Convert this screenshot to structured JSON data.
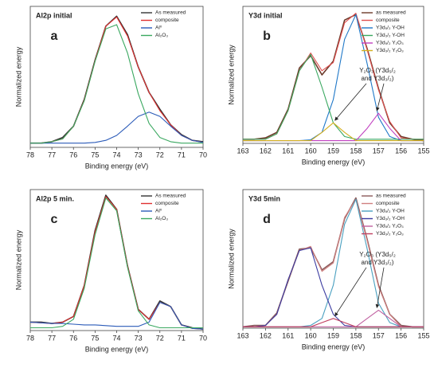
{
  "chart_data": [
    {
      "type": "line",
      "title": "Al2p initial",
      "label": "a",
      "x_label": "Binding energy (eV)",
      "y_label": "Normalized energy",
      "xlim": [
        78,
        70
      ],
      "xticks": [
        78,
        77,
        76,
        75,
        74,
        73,
        72,
        71,
        70
      ],
      "ylim": [
        0,
        1
      ],
      "legend": "upper right",
      "x": [
        78,
        77.5,
        77,
        76.5,
        76,
        75.5,
        75,
        74.5,
        74,
        73.5,
        73,
        72.5,
        72,
        71.5,
        71,
        70.5,
        70
      ],
      "series": [
        {
          "name": "As measured",
          "color": "#333333",
          "values": [
            0.03,
            0.03,
            0.04,
            0.07,
            0.15,
            0.34,
            0.62,
            0.86,
            0.93,
            0.8,
            0.57,
            0.39,
            0.27,
            0.16,
            0.09,
            0.05,
            0.04
          ]
        },
        {
          "name": "composite",
          "color": "#e03030",
          "values": [
            0.03,
            0.03,
            0.04,
            0.06,
            0.15,
            0.335,
            0.615,
            0.86,
            0.925,
            0.79,
            0.57,
            0.39,
            0.26,
            0.16,
            0.085,
            0.05,
            0.035
          ]
        },
        {
          "name": "Al⁰",
          "color": "#2a5ab8",
          "values": [
            0.03,
            0.03,
            0.03,
            0.03,
            0.03,
            0.03,
            0.035,
            0.05,
            0.085,
            0.15,
            0.22,
            0.25,
            0.22,
            0.15,
            0.085,
            0.05,
            0.035
          ]
        },
        {
          "name": "Al₂O₃",
          "color": "#3aa860",
          "values": [
            0.03,
            0.03,
            0.04,
            0.06,
            0.15,
            0.33,
            0.61,
            0.84,
            0.87,
            0.67,
            0.38,
            0.17,
            0.07,
            0.04,
            0.03,
            0.03,
            0.03
          ]
        }
      ]
    },
    {
      "type": "line",
      "title": "Y3d initial",
      "label": "b",
      "x_label": "Binding energy (eV)",
      "y_label": "Normalized energy",
      "xlim": [
        163,
        155
      ],
      "xticks": [
        163,
        162,
        161,
        160,
        159,
        158,
        157,
        156,
        155
      ],
      "ylim": [
        0,
        1
      ],
      "legend": "upper right",
      "annotation": [
        "Y₂O₃ (Y3d₅/₂",
        "and Y3d₃/₂)"
      ],
      "x": [
        163,
        162.5,
        162,
        161.5,
        161,
        160.5,
        160,
        159.5,
        159,
        158.5,
        158,
        157.5,
        157,
        156.5,
        156,
        155.5,
        155
      ],
      "series": [
        {
          "name": "as measured",
          "color": "#6b3a2a",
          "values": [
            0.03,
            0.03,
            0.04,
            0.08,
            0.25,
            0.55,
            0.64,
            0.5,
            0.6,
            0.9,
            0.94,
            0.69,
            0.4,
            0.15,
            0.05,
            0.03,
            0.02
          ]
        },
        {
          "name": "composite",
          "color": "#e05050",
          "values": [
            0.03,
            0.03,
            0.03,
            0.07,
            0.24,
            0.53,
            0.66,
            0.53,
            0.59,
            0.88,
            0.95,
            0.68,
            0.39,
            0.16,
            0.04,
            0.03,
            0.03
          ]
        },
        {
          "name": "Y3d₅/₂ Y-OH",
          "color": "#1f78c8",
          "values": [
            0.02,
            0.02,
            0.02,
            0.02,
            0.02,
            0.02,
            0.026,
            0.08,
            0.32,
            0.76,
            0.94,
            0.58,
            0.19,
            0.05,
            0.02,
            0.02,
            0.02
          ]
        },
        {
          "name": "Y3d₃/₂ Y-OH",
          "color": "#3aa860",
          "values": [
            0.03,
            0.03,
            0.03,
            0.07,
            0.24,
            0.53,
            0.65,
            0.41,
            0.15,
            0.05,
            0.03,
            0.03,
            0.03,
            0.03,
            0.03,
            0.03,
            0.03
          ]
        },
        {
          "name": "Y3d₅/₂ Y₂O₃",
          "color": "#c040c0",
          "values": [
            0.02,
            0.02,
            0.02,
            0.02,
            0.02,
            0.02,
            0.02,
            0.02,
            0.02,
            0.02,
            0.02,
            0.11,
            0.22,
            0.11,
            0.02,
            0.02,
            0.02
          ]
        },
        {
          "name": "Y3d₃/₂ Y₂O₃",
          "color": "#d4b020",
          "values": [
            0.02,
            0.02,
            0.02,
            0.02,
            0.02,
            0.02,
            0.02,
            0.08,
            0.15,
            0.08,
            0.02,
            0.02,
            0.02,
            0.02,
            0.02,
            0.02,
            0.02
          ]
        }
      ]
    },
    {
      "type": "line",
      "title": "Al2p 5 min.",
      "label": "c",
      "x_label": "Binding energy (eV)",
      "y_label": "Normalized energy",
      "xlim": [
        78,
        70
      ],
      "xticks": [
        78,
        77,
        76,
        75,
        74,
        73,
        72,
        71,
        70
      ],
      "ylim": [
        0,
        1
      ],
      "legend": "upper right",
      "x": [
        78,
        77.5,
        77,
        76.5,
        76,
        75.5,
        75,
        74.5,
        74,
        73.5,
        73,
        72.5,
        72,
        71.5,
        71,
        70.5,
        70
      ],
      "series": [
        {
          "name": "As measured",
          "color": "#333333",
          "values": [
            0.06,
            0.06,
            0.05,
            0.06,
            0.1,
            0.32,
            0.71,
            0.96,
            0.86,
            0.46,
            0.15,
            0.08,
            0.21,
            0.17,
            0.04,
            0.02,
            0.01
          ]
        },
        {
          "name": "composite",
          "color": "#e03030",
          "values": [
            0.06,
            0.055,
            0.05,
            0.06,
            0.1,
            0.32,
            0.7,
            0.95,
            0.86,
            0.46,
            0.15,
            0.08,
            0.2,
            0.17,
            0.04,
            0.015,
            0.01
          ]
        },
        {
          "name": "Al⁰",
          "color": "#2a5ab8",
          "values": [
            0.06,
            0.055,
            0.05,
            0.05,
            0.045,
            0.04,
            0.04,
            0.035,
            0.03,
            0.03,
            0.03,
            0.06,
            0.2,
            0.17,
            0.04,
            0.015,
            0.01
          ]
        },
        {
          "name": "Al₂O₃",
          "color": "#3aa860",
          "values": [
            0.02,
            0.02,
            0.02,
            0.03,
            0.08,
            0.3,
            0.68,
            0.94,
            0.85,
            0.45,
            0.14,
            0.04,
            0.02,
            0.02,
            0.02,
            0.02,
            0.02
          ]
        }
      ]
    },
    {
      "type": "line",
      "title": "Y3d 5min",
      "label": "d",
      "x_label": "Binding energy (eV)",
      "y_label": "Normalized energy",
      "xlim": [
        163,
        155
      ],
      "xticks": [
        163,
        162,
        161,
        160,
        159,
        158,
        157,
        156,
        155
      ],
      "ylim": [
        0,
        1
      ],
      "legend": "upper right",
      "annotation": [
        "Y₂O₃ (Y3d₅/₂",
        "and Y3d₃/₂)"
      ],
      "x": [
        163,
        162.5,
        162,
        161.5,
        161,
        160.5,
        160,
        159.5,
        159,
        158.5,
        158,
        157.5,
        157,
        156.5,
        156,
        155.5,
        155
      ],
      "series": [
        {
          "name": "as measured",
          "color": "#8b5a5a",
          "values": [
            0.01,
            0.02,
            0.02,
            0.11,
            0.34,
            0.57,
            0.58,
            0.42,
            0.48,
            0.79,
            0.94,
            0.64,
            0.31,
            0.1,
            0.02,
            0.01,
            0.01
          ]
        },
        {
          "name": "composite",
          "color": "#d08080",
          "values": [
            0.01,
            0.01,
            0.02,
            0.1,
            0.35,
            0.56,
            0.59,
            0.41,
            0.47,
            0.8,
            0.93,
            0.63,
            0.3,
            0.1,
            0.01,
            0.01,
            0.01
          ]
        },
        {
          "name": "Y3d₅/₂ Y-OH",
          "color": "#4aa0c0",
          "values": [
            0.01,
            0.01,
            0.01,
            0.01,
            0.01,
            0.01,
            0.02,
            0.07,
            0.31,
            0.75,
            0.93,
            0.57,
            0.18,
            0.04,
            0.01,
            0.01,
            0.01
          ]
        },
        {
          "name": "Y3d₃/₂ Y-OH",
          "color": "#3a3aa0",
          "values": [
            0.01,
            0.01,
            0.02,
            0.1,
            0.35,
            0.56,
            0.58,
            0.31,
            0.1,
            0.02,
            0.01,
            0.01,
            0.01,
            0.01,
            0.01,
            0.01,
            0.01
          ]
        },
        {
          "name": "Y3d₅/₂ Y₂O₃",
          "color": "#c060a0",
          "values": [
            0.01,
            0.01,
            0.01,
            0.01,
            0.01,
            0.01,
            0.01,
            0.01,
            0.01,
            0.01,
            0.01,
            0.07,
            0.13,
            0.07,
            0.01,
            0.01,
            0.01
          ]
        },
        {
          "name": "Y3d₃/₂ Y₂O₃",
          "color": "#c04060",
          "values": [
            0.01,
            0.01,
            0.01,
            0.01,
            0.01,
            0.01,
            0.01,
            0.04,
            0.07,
            0.04,
            0.01,
            0.01,
            0.01,
            0.01,
            0.01,
            0.01,
            0.01
          ]
        }
      ]
    }
  ]
}
